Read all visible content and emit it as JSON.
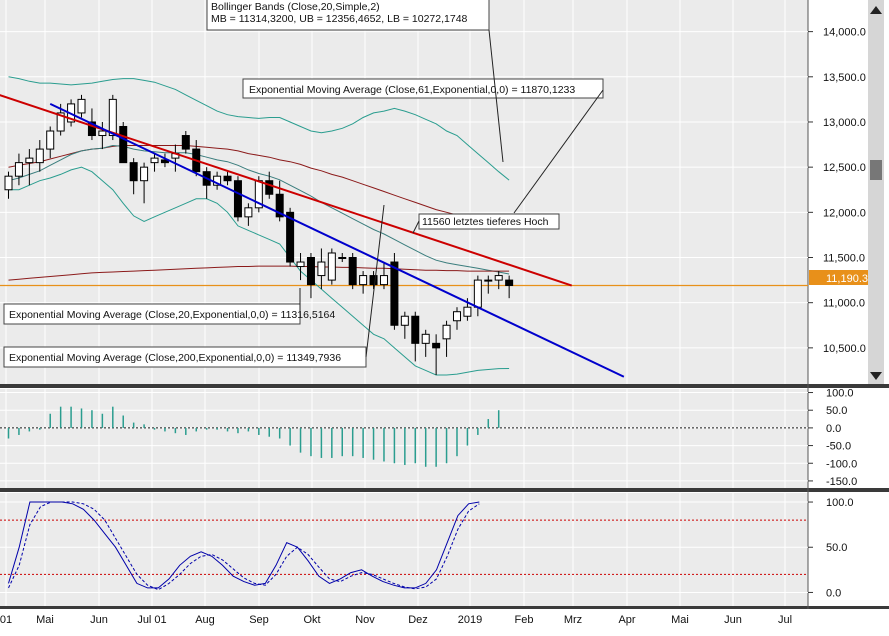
{
  "chart_data": [
    {
      "type": "candlestick",
      "panel": "price",
      "ylim": [
        10100,
        14350
      ],
      "yticks": [
        10500,
        11000,
        11500,
        12000,
        12500,
        13000,
        13500,
        14000
      ],
      "ytick_labels": [
        "10,500.0",
        "11,000.0",
        "11,500.0",
        "12,000.0",
        "12,500.0",
        "13,000.0",
        "13,500.0",
        "14,000.0"
      ],
      "last_price_label": "11,190.3",
      "last_price": 11190.3,
      "x_months": [
        "01",
        "Mai",
        "Jun",
        "Jul 01",
        "Aug",
        "Sep",
        "Okt",
        "Nov",
        "Dez",
        "2019",
        "Feb",
        "Mrz",
        "Apr",
        "Mai",
        "Jun",
        "Jul"
      ],
      "candles": [
        {
          "o": 12250,
          "h": 12450,
          "l": 12150,
          "c": 12400
        },
        {
          "o": 12400,
          "h": 12650,
          "l": 12300,
          "c": 12550
        },
        {
          "o": 12550,
          "h": 12700,
          "l": 12300,
          "c": 12600
        },
        {
          "o": 12550,
          "h": 12800,
          "l": 12450,
          "c": 12700
        },
        {
          "o": 12700,
          "h": 12950,
          "l": 12600,
          "c": 12900
        },
        {
          "o": 12900,
          "h": 13200,
          "l": 12850,
          "c": 13100
        },
        {
          "o": 13000,
          "h": 13250,
          "l": 12950,
          "c": 13200
        },
        {
          "o": 13100,
          "h": 13300,
          "l": 13050,
          "c": 13250
        },
        {
          "o": 13000,
          "h": 13150,
          "l": 12800,
          "c": 12850
        },
        {
          "o": 12850,
          "h": 13000,
          "l": 12700,
          "c": 12900
        },
        {
          "o": 12850,
          "h": 13300,
          "l": 12800,
          "c": 13250
        },
        {
          "o": 12950,
          "h": 13000,
          "l": 12550,
          "c": 12550
        },
        {
          "o": 12550,
          "h": 12600,
          "l": 12200,
          "c": 12350
        },
        {
          "o": 12350,
          "h": 12550,
          "l": 12100,
          "c": 12500
        },
        {
          "o": 12550,
          "h": 12650,
          "l": 12450,
          "c": 12600
        },
        {
          "o": 12580,
          "h": 12650,
          "l": 12500,
          "c": 12550
        },
        {
          "o": 12600,
          "h": 12750,
          "l": 12450,
          "c": 12650
        },
        {
          "o": 12850,
          "h": 12900,
          "l": 12650,
          "c": 12700
        },
        {
          "o": 12700,
          "h": 12800,
          "l": 12400,
          "c": 12450
        },
        {
          "o": 12450,
          "h": 12500,
          "l": 12150,
          "c": 12300
        },
        {
          "o": 12300,
          "h": 12450,
          "l": 12250,
          "c": 12400
        },
        {
          "o": 12400,
          "h": 12450,
          "l": 12300,
          "c": 12350
        },
        {
          "o": 12350,
          "h": 12400,
          "l": 11900,
          "c": 11950
        },
        {
          "o": 11950,
          "h": 12100,
          "l": 11850,
          "c": 12050
        },
        {
          "o": 12050,
          "h": 12400,
          "l": 12000,
          "c": 12350
        },
        {
          "o": 12350,
          "h": 12450,
          "l": 12150,
          "c": 12200
        },
        {
          "o": 12200,
          "h": 12350,
          "l": 11900,
          "c": 11950
        },
        {
          "o": 12000,
          "h": 12050,
          "l": 11400,
          "c": 11450
        },
        {
          "o": 11400,
          "h": 11550,
          "l": 11250,
          "c": 11450
        },
        {
          "o": 11500,
          "h": 11550,
          "l": 11050,
          "c": 11200
        },
        {
          "o": 11300,
          "h": 11600,
          "l": 11150,
          "c": 11450
        },
        {
          "o": 11250,
          "h": 11600,
          "l": 11200,
          "c": 11550
        },
        {
          "o": 11500,
          "h": 11550,
          "l": 11450,
          "c": 11500
        },
        {
          "o": 11500,
          "h": 11550,
          "l": 11150,
          "c": 11200
        },
        {
          "o": 11200,
          "h": 11350,
          "l": 11100,
          "c": 11300
        },
        {
          "o": 11300,
          "h": 11350,
          "l": 11150,
          "c": 11200
        },
        {
          "o": 11200,
          "h": 11450,
          "l": 11150,
          "c": 11300
        },
        {
          "o": 11450,
          "h": 11550,
          "l": 10700,
          "c": 10750
        },
        {
          "o": 10750,
          "h": 10900,
          "l": 10600,
          "c": 10850
        },
        {
          "o": 10850,
          "h": 10900,
          "l": 10350,
          "c": 10550
        },
        {
          "o": 10550,
          "h": 10700,
          "l": 10400,
          "c": 10650
        },
        {
          "o": 10550,
          "h": 10650,
          "l": 10200,
          "c": 10500
        },
        {
          "o": 10600,
          "h": 10800,
          "l": 10400,
          "c": 10750
        },
        {
          "o": 10800,
          "h": 10950,
          "l": 10700,
          "c": 10900
        },
        {
          "o": 10850,
          "h": 11050,
          "l": 10800,
          "c": 10950
        },
        {
          "o": 10950,
          "h": 11300,
          "l": 10850,
          "c": 11250
        },
        {
          "o": 11250,
          "h": 11300,
          "l": 11100,
          "c": 11250
        },
        {
          "o": 11250,
          "h": 11350,
          "l": 11150,
          "c": 11300
        },
        {
          "o": 11250,
          "h": 11300,
          "l": 11050,
          "c": 11190
        }
      ],
      "ema20": [
        12350,
        12380,
        12420,
        12460,
        12520,
        12580,
        12640,
        12680,
        12700,
        12710,
        12740,
        12730,
        12700,
        12680,
        12670,
        12660,
        12660,
        12660,
        12640,
        12610,
        12580,
        12560,
        12520,
        12470,
        12430,
        12400,
        12360,
        12300,
        12240,
        12180,
        12110,
        12050,
        11990,
        11930,
        11870,
        11810,
        11760,
        11700,
        11640,
        11580,
        11520,
        11470,
        11440,
        11420,
        11400,
        11380,
        11360,
        11340,
        11317
      ],
      "ema61": [
        12500,
        12520,
        12540,
        12560,
        12590,
        12620,
        12650,
        12680,
        12700,
        12710,
        12730,
        12740,
        12740,
        12740,
        12740,
        12740,
        12740,
        12740,
        12730,
        12720,
        12710,
        12700,
        12680,
        12650,
        12630,
        12610,
        12580,
        12560,
        12530,
        12490,
        12460,
        12420,
        12390,
        12350,
        12310,
        12270,
        12230,
        12190,
        12150,
        12110,
        12070,
        12030,
        12000,
        11970,
        11950,
        11930,
        11910,
        11890,
        11870
      ],
      "ema200": [
        11250,
        11260,
        11270,
        11280,
        11290,
        11300,
        11310,
        11320,
        11330,
        11335,
        11340,
        11345,
        11350,
        11355,
        11360,
        11365,
        11370,
        11375,
        11380,
        11385,
        11390,
        11395,
        11400,
        11400,
        11405,
        11405,
        11405,
        11405,
        11400,
        11400,
        11395,
        11395,
        11390,
        11390,
        11385,
        11380,
        11380,
        11375,
        11370,
        11365,
        11360,
        11360,
        11355,
        11355,
        11350,
        11350,
        11350,
        11350,
        11350
      ],
      "bb_upper": [
        13500,
        13480,
        13450,
        13430,
        13430,
        13420,
        13410,
        13420,
        13430,
        13450,
        13470,
        13480,
        13480,
        13460,
        13440,
        13400,
        13360,
        13300,
        13240,
        13180,
        13120,
        13080,
        13060,
        13050,
        13040,
        13050,
        13050,
        13000,
        12950,
        12900,
        12880,
        12900,
        12930,
        12980,
        13050,
        13100,
        13120,
        13150,
        13120,
        13080,
        13030,
        12980,
        12900,
        12850,
        12750,
        12650,
        12550,
        12450,
        12357
      ],
      "bb_lower": [
        12250,
        12250,
        12300,
        12350,
        12380,
        12420,
        12470,
        12500,
        12450,
        12350,
        12250,
        12100,
        11960,
        11900,
        11950,
        12000,
        12050,
        12100,
        12150,
        12150,
        12100,
        12000,
        11850,
        11800,
        11750,
        11700,
        11650,
        11500,
        11350,
        11250,
        11150,
        11050,
        10950,
        10850,
        10750,
        10650,
        10600,
        10500,
        10400,
        10300,
        10250,
        10200,
        10200,
        10210,
        10230,
        10250,
        10260,
        10270,
        10272
      ],
      "trendlines": [
        {
          "name": "red",
          "color": "#cc0000",
          "from": {
            "x": -3,
            "y": 13380
          },
          "to": {
            "x": 54,
            "y": 11190
          }
        },
        {
          "name": "blue",
          "color": "#0000cc",
          "from": {
            "x": 4,
            "y": 13200
          },
          "to": {
            "x": 59,
            "y": 10180
          }
        }
      ],
      "hline_color": "#e8901a",
      "annotations": {
        "bollinger": "Bollinger Bands (Close,20,Simple,2)",
        "bollinger_values": "MB = 11314,3200, UB = 12356,4652, LB = 10272,1748",
        "ema61": "Exponential Moving Average (Close,61,Exponential,0,0) = 11870,1233",
        "ema20": "Exponential Moving Average (Close,20,Exponential,0,0) = 11316,5164",
        "ema200": "Exponential Moving Average (Close,200,Exponential,0,0) = 11349,7936",
        "low": "11560 letztes tieferes Hoch"
      }
    },
    {
      "type": "bar",
      "panel": "momentum",
      "ylim": [
        -170,
        110
      ],
      "yticks": [
        100,
        50,
        0,
        -50,
        -100,
        -150
      ],
      "ytick_labels": [
        "100.0",
        "50.0",
        "0.0",
        "-50.0",
        "-100.0",
        "-150.0"
      ],
      "values": [
        -30,
        -20,
        -10,
        -5,
        40,
        60,
        60,
        55,
        50,
        40,
        60,
        35,
        15,
        10,
        -5,
        -10,
        -15,
        -20,
        -10,
        -5,
        -5,
        -10,
        -15,
        -10,
        -20,
        -25,
        -30,
        -50,
        -70,
        -80,
        -85,
        -85,
        -80,
        -80,
        -85,
        -90,
        -95,
        -100,
        -105,
        -100,
        -110,
        -110,
        -100,
        -80,
        -50,
        -20,
        25,
        50,
        0
      ]
    },
    {
      "type": "line",
      "panel": "stochastic",
      "ylim": [
        -15,
        110
      ],
      "yticks": [
        100,
        50,
        0
      ],
      "ytick_labels": [
        "100.0",
        "50.0",
        "0.0"
      ],
      "ref_lines": [
        80,
        20
      ],
      "series": [
        {
          "values": [
            10,
            50,
            100,
            100,
            100,
            100,
            98,
            92,
            80,
            65,
            50,
            30,
            10,
            5,
            5,
            15,
            30,
            40,
            45,
            40,
            30,
            18,
            12,
            8,
            10,
            30,
            55,
            50,
            35,
            18,
            10,
            15,
            22,
            25,
            18,
            12,
            8,
            5,
            5,
            10,
            25,
            55,
            85,
            98,
            100
          ]
        },
        {
          "values": [
            5,
            30,
            75,
            95,
            100,
            100,
            100,
            98,
            92,
            80,
            60,
            40,
            20,
            8,
            3,
            10,
            20,
            32,
            40,
            42,
            36,
            26,
            16,
            10,
            8,
            20,
            40,
            50,
            42,
            28,
            15,
            12,
            18,
            22,
            20,
            15,
            10,
            6,
            4,
            6,
            15,
            40,
            70,
            90,
            98
          ]
        }
      ]
    }
  ]
}
